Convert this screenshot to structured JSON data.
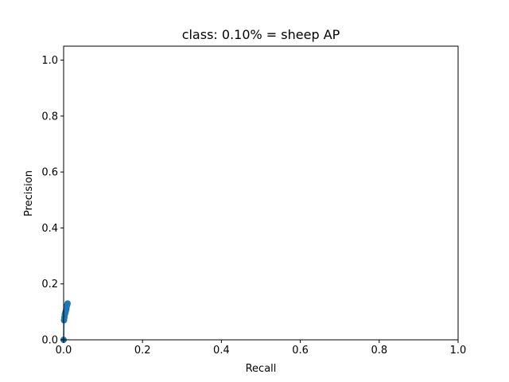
{
  "chart_data": {
    "type": "line",
    "title": "class: 0.10% = sheep AP",
    "xlabel": "Recall",
    "ylabel": "Precision",
    "xlim": [
      0.0,
      1.0
    ],
    "ylim": [
      0.0,
      1.05
    ],
    "xticks": [
      "0.0",
      "0.2",
      "0.4",
      "0.6",
      "0.8",
      "1.0"
    ],
    "yticks": [
      "0.0",
      "0.2",
      "0.4",
      "0.6",
      "0.8",
      "1.0"
    ],
    "grid": false,
    "series": [
      {
        "color": "#1f77b4",
        "marker": "circle",
        "x": [
          0.0,
          0.001,
          0.002,
          0.003,
          0.004,
          0.005,
          0.006,
          0.007,
          0.008,
          0.009,
          0.01
        ],
        "y": [
          0.0,
          0.07,
          0.08,
          0.09,
          0.095,
          0.1,
          0.105,
          0.11,
          0.12,
          0.125,
          0.13
        ]
      }
    ],
    "fill": {
      "color": "#b0a8c8",
      "x": [
        0.0,
        0.0,
        0.002,
        0.002
      ],
      "y": [
        0.0,
        0.08,
        0.08,
        0.0
      ]
    }
  }
}
